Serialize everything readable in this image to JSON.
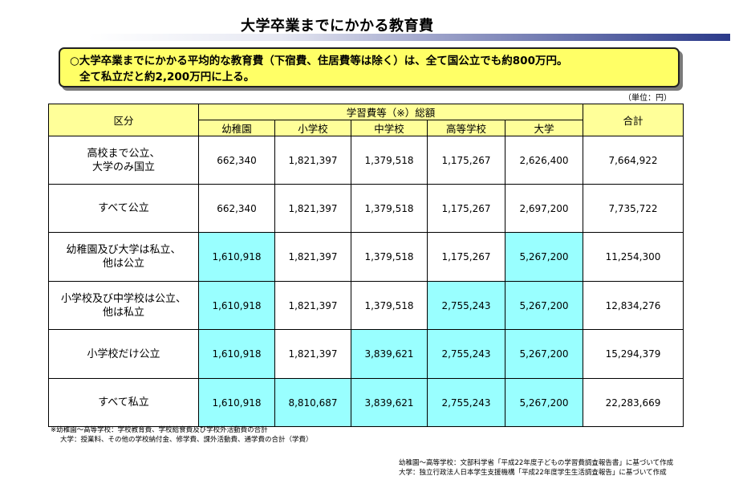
{
  "title": "大学卒業までにかかる教育費",
  "summary": {
    "line1": "○大学卒業までにかかる平均的な教育費（下宿費、住居費等は除く）は、全て国公立でも約800万円。",
    "line2": "全て私立だと約2,200万円に上る。"
  },
  "unit": "（単位：円）",
  "table": {
    "header": {
      "kubun": "区分",
      "group": "学習費等（※）総額",
      "total": "合計",
      "columns": [
        "幼稚園",
        "小学校",
        "中学校",
        "高等学校",
        "大学"
      ]
    },
    "highlight_color": "#99ffff",
    "rows": [
      {
        "label1": "高校まで公立、",
        "label2": "大学のみ国立",
        "values": [
          "662,340",
          "1,821,397",
          "1,379,518",
          "1,175,267",
          "2,626,400"
        ],
        "total": "7,664,922",
        "highlight": [
          false,
          false,
          false,
          false,
          false
        ]
      },
      {
        "label1": "すべて公立",
        "label2": "",
        "values": [
          "662,340",
          "1,821,397",
          "1,379,518",
          "1,175,267",
          "2,697,200"
        ],
        "total": "7,735,722",
        "highlight": [
          false,
          false,
          false,
          false,
          false
        ]
      },
      {
        "label1": "幼稚園及び大学は私立、",
        "label2": "他は公立",
        "values": [
          "1,610,918",
          "1,821,397",
          "1,379,518",
          "1,175,267",
          "5,267,200"
        ],
        "total": "11,254,300",
        "highlight": [
          true,
          false,
          false,
          false,
          true
        ]
      },
      {
        "label1": "小学校及び中学校は公立、",
        "label2": "他は私立",
        "values": [
          "1,610,918",
          "1,821,397",
          "1,379,518",
          "2,755,243",
          "5,267,200"
        ],
        "total": "12,834,276",
        "highlight": [
          true,
          false,
          false,
          true,
          true
        ]
      },
      {
        "label1": "小学校だけ公立",
        "label2": "",
        "values": [
          "1,610,918",
          "1,821,397",
          "3,839,621",
          "2,755,243",
          "5,267,200"
        ],
        "total": "15,294,379",
        "highlight": [
          true,
          false,
          true,
          true,
          true
        ]
      },
      {
        "label1": "すべて私立",
        "label2": "",
        "values": [
          "1,610,918",
          "8,810,687",
          "3,839,621",
          "2,755,243",
          "5,267,200"
        ],
        "total": "22,283,669",
        "highlight": [
          true,
          true,
          true,
          true,
          true
        ]
      }
    ]
  },
  "notes": {
    "line1": "※幼稚園～高等学校：学校教育費、学校給食費及び学校外活動費の合計",
    "line2": "大学：授業料、その他の学校納付金、修学費、課外活動費、通学費の合計（学費）"
  },
  "source": {
    "line1": "幼稚園～高等学校：文部科学省「平成22年度子どもの学習費調査報告書」に基づいて作成",
    "line2": "大学：独立行政法人日本学生支援機構「平成22年度学生生活調査報告」に基づいて作成"
  }
}
